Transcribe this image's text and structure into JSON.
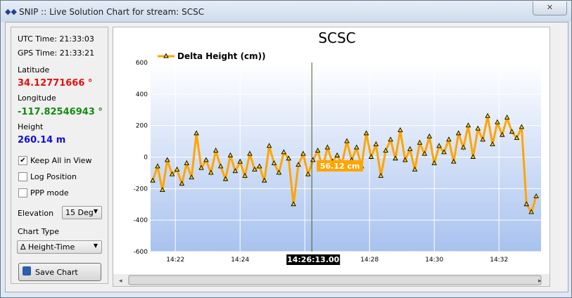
{
  "window": {
    "title": "SNIP :: Live Solution Chart for stream:  SCSC"
  },
  "sidebar": {
    "utc_time": "UTC Time: 21:33:03",
    "gps_time": "GPS Time: 21:33:21",
    "latitude_label": "Latitude",
    "latitude_value": "34.12771666 °",
    "longitude_label": "Longitude",
    "longitude_value": "-117.82546943 °",
    "height_label": "Height",
    "height_value": "260.14 m",
    "checkboxes": [
      {
        "label": "Keep All in View",
        "checked": true
      },
      {
        "label": "Log Position",
        "checked": false
      },
      {
        "label": "PPP mode",
        "checked": false
      }
    ],
    "elevation_label": "Elevation",
    "elevation_value": "15 Deg",
    "chart_type_label": "Chart Type",
    "chart_type_value": "Δ Height-Time",
    "save_button": "Save Chart"
  },
  "chart_data": {
    "type": "line",
    "title": "SCSC",
    "x": [
      "14:21:18",
      "14:21:27",
      "14:21:36",
      "14:21:45",
      "14:21:54",
      "14:22:03",
      "14:22:12",
      "14:22:21",
      "14:22:30",
      "14:22:39",
      "14:22:48",
      "14:22:57",
      "14:23:06",
      "14:23:15",
      "14:23:24",
      "14:23:33",
      "14:23:42",
      "14:23:51",
      "14:24:00",
      "14:24:09",
      "14:24:18",
      "14:24:27",
      "14:24:36",
      "14:24:45",
      "14:24:54",
      "14:25:03",
      "14:25:12",
      "14:25:21",
      "14:25:30",
      "14:25:39",
      "14:25:48",
      "14:25:57",
      "14:26:06",
      "14:26:15",
      "14:26:24",
      "14:26:33",
      "14:26:42",
      "14:26:51",
      "14:27:00",
      "14:27:09",
      "14:27:18",
      "14:27:27",
      "14:27:36",
      "14:27:45",
      "14:27:54",
      "14:28:03",
      "14:28:12",
      "14:28:21",
      "14:28:30",
      "14:28:39",
      "14:28:48",
      "14:28:57",
      "14:29:06",
      "14:29:15",
      "14:29:24",
      "14:29:33",
      "14:29:42",
      "14:29:51",
      "14:30:00",
      "14:30:09",
      "14:30:18",
      "14:30:27",
      "14:30:36",
      "14:30:45",
      "14:30:54",
      "14:31:03",
      "14:31:12",
      "14:31:21",
      "14:31:30",
      "14:31:39",
      "14:31:48",
      "14:31:57",
      "14:32:06",
      "14:32:15",
      "14:32:24",
      "14:32:33",
      "14:32:42",
      "14:32:51",
      "14:33:00",
      "14:33:09"
    ],
    "series": [
      {
        "name": "Delta Height (cm))",
        "color": "#ffa500",
        "values": [
          -150,
          -60,
          -210,
          -20,
          -110,
          -80,
          -170,
          -40,
          -130,
          150,
          -70,
          -20,
          -100,
          40,
          -60,
          -140,
          10,
          -90,
          -30,
          -120,
          20,
          -80,
          -60,
          -150,
          70,
          -40,
          -100,
          30,
          -10,
          -300,
          -50,
          20,
          -110,
          -20,
          40,
          -70,
          60,
          -30,
          10,
          -40,
          100,
          -20,
          60,
          -60,
          150,
          0,
          80,
          -120,
          40,
          110,
          -10,
          170,
          -20,
          50,
          -80,
          90,
          20,
          130,
          -40,
          70,
          30,
          110,
          -30,
          150,
          60,
          200,
          0,
          180,
          110,
          260,
          80,
          220,
          140,
          250,
          160,
          120,
          190,
          -300,
          -350,
          -250
        ]
      }
    ],
    "xlim": [
      "14:21:14",
      "14:33:18"
    ],
    "xticks": [
      "14:22",
      "14:24",
      "14:26",
      "14:28",
      "14:30",
      "14:32"
    ],
    "ylim": [
      -600,
      600
    ],
    "yticks": [
      -600,
      -400,
      -200,
      0,
      200,
      400,
      600
    ],
    "grid": true,
    "cursor": {
      "x": "14:26:13.00",
      "label": "56.12 cm"
    }
  }
}
